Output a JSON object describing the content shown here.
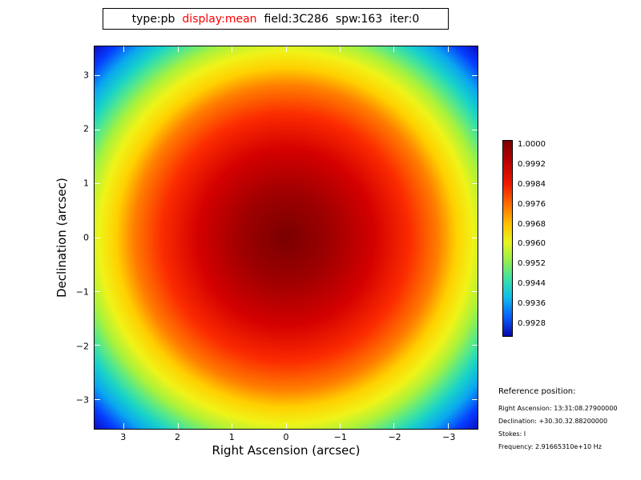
{
  "title_bar": {
    "segments": [
      {
        "text": "type:pb",
        "color": "#000000"
      },
      {
        "text": "display:mean",
        "color": "#ff0000"
      },
      {
        "text": "field:3C286",
        "color": "#000000"
      },
      {
        "text": "spw:163",
        "color": "#000000"
      },
      {
        "text": "iter:0",
        "color": "#000000"
      }
    ]
  },
  "plot": {
    "xlabel": "Right Ascension (arcsec)",
    "ylabel": "Declination (arcsec)",
    "x_ticks": [
      "3",
      "2",
      "1",
      "0",
      "−1",
      "−2",
      "−3"
    ],
    "y_ticks": [
      "3",
      "2",
      "1",
      "0",
      "−1",
      "−2",
      "−3"
    ]
  },
  "colorbar": {
    "labels": [
      "1.0000",
      "0.9992",
      "0.9984",
      "0.9976",
      "0.9968",
      "0.9960",
      "0.9952",
      "0.9944",
      "0.9936",
      "0.9928"
    ]
  },
  "reference": {
    "heading": "Reference position:",
    "lines": [
      "Right Ascension: 13:31:08.27900000",
      "Declination: +30.30.32.88200000",
      "Stokes: I",
      "Frequency: 2.91665310e+10 Hz"
    ]
  },
  "chart_data": {
    "type": "heatmap",
    "title": "type:pb display:mean field:3C286 spw:163 iter:0",
    "xlabel": "Right Ascension (arcsec)",
    "ylabel": "Declination (arcsec)",
    "xlim": [
      3.54,
      -3.54
    ],
    "ylim": [
      -3.54,
      3.54
    ],
    "x_ticks": [
      3,
      2,
      1,
      0,
      -1,
      -2,
      -3
    ],
    "y_ticks": [
      3,
      2,
      1,
      0,
      -1,
      -2,
      -3
    ],
    "colormap": "jet",
    "colorbar_ticks": [
      1.0,
      0.9992,
      0.9984,
      0.9976,
      0.9968,
      0.996,
      0.9952,
      0.9944,
      0.9936,
      0.9928
    ],
    "value_range": [
      0.9922,
      1.0
    ],
    "grid": false,
    "legend_position": "right-colorbar",
    "description": "Radially symmetric primary-beam response centered at (0,0); value 1.0000 at center decreasing smoothly toward ~0.9922 at the field corners",
    "radial_profile": [
      {
        "radius_arcsec": 0.0,
        "value": 1.0
      },
      {
        "radius_arcsec": 1.0,
        "value": 0.9985
      },
      {
        "radius_arcsec": 2.0,
        "value": 0.9969
      },
      {
        "radius_arcsec": 3.0,
        "value": 0.9948
      },
      {
        "radius_arcsec": 3.5,
        "value": 0.9938
      },
      {
        "radius_arcsec": 4.2,
        "value": 0.993
      },
      {
        "radius_arcsec": 5.0,
        "value": 0.9922
      }
    ]
  }
}
